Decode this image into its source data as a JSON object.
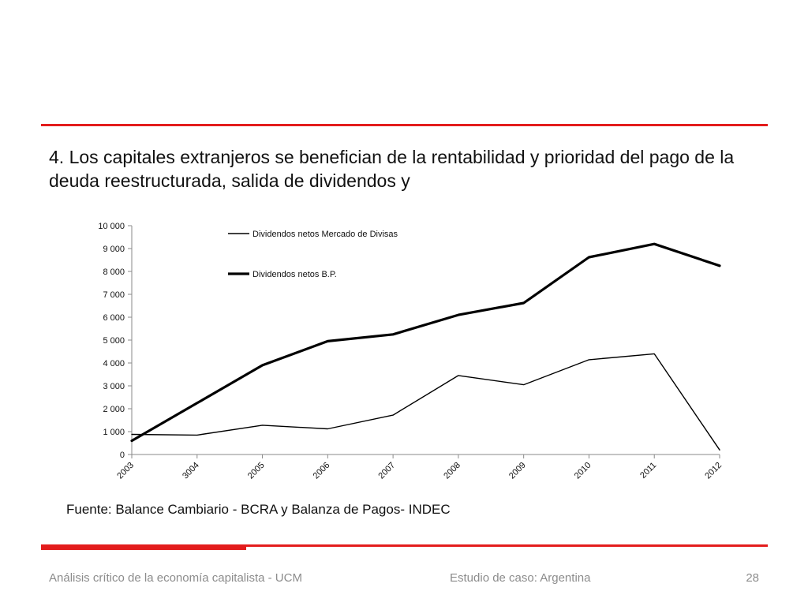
{
  "slide": {
    "title": "4. Los capitales extranjeros se benefician de la rentabilidad y prioridad del pago de la deuda reestructurada, salida de dividendos y",
    "source": "Fuente: Balance Cambiario - BCRA y Balanza de Pagos- INDEC",
    "footer_left": "Análisis crítico de la economía capitalista - UCM",
    "footer_center": "Estudio de caso: Argentina",
    "page_number": "28"
  },
  "colors": {
    "accent": "#e31c1c",
    "line": "#000000",
    "footer_text": "#8c8c8c"
  },
  "chart_data": {
    "type": "line",
    "categories": [
      "2003",
      "3004",
      "2005",
      "2006",
      "2007",
      "2008",
      "2009",
      "2010",
      "2011",
      "2012"
    ],
    "series": [
      {
        "name": "Dividendos netos Mercado de Divisas",
        "style": "thin",
        "values": [
          880,
          850,
          1280,
          1120,
          1720,
          3450,
          3050,
          4140,
          4400,
          200
        ]
      },
      {
        "name": "Dividendos netos B.P.",
        "style": "thick",
        "values": [
          600,
          2250,
          3900,
          4950,
          5250,
          6100,
          6620,
          8620,
          9200,
          8250
        ]
      }
    ],
    "ylim": [
      0,
      10000
    ],
    "yticks": [
      "0",
      "1 000",
      "2 000",
      "3 000",
      "4 000",
      "5 000",
      "6 000",
      "7 000",
      "8 000",
      "9 000",
      "10 000"
    ],
    "xlabel": "",
    "ylabel": "",
    "grid": false,
    "legend_position": "top-center"
  }
}
